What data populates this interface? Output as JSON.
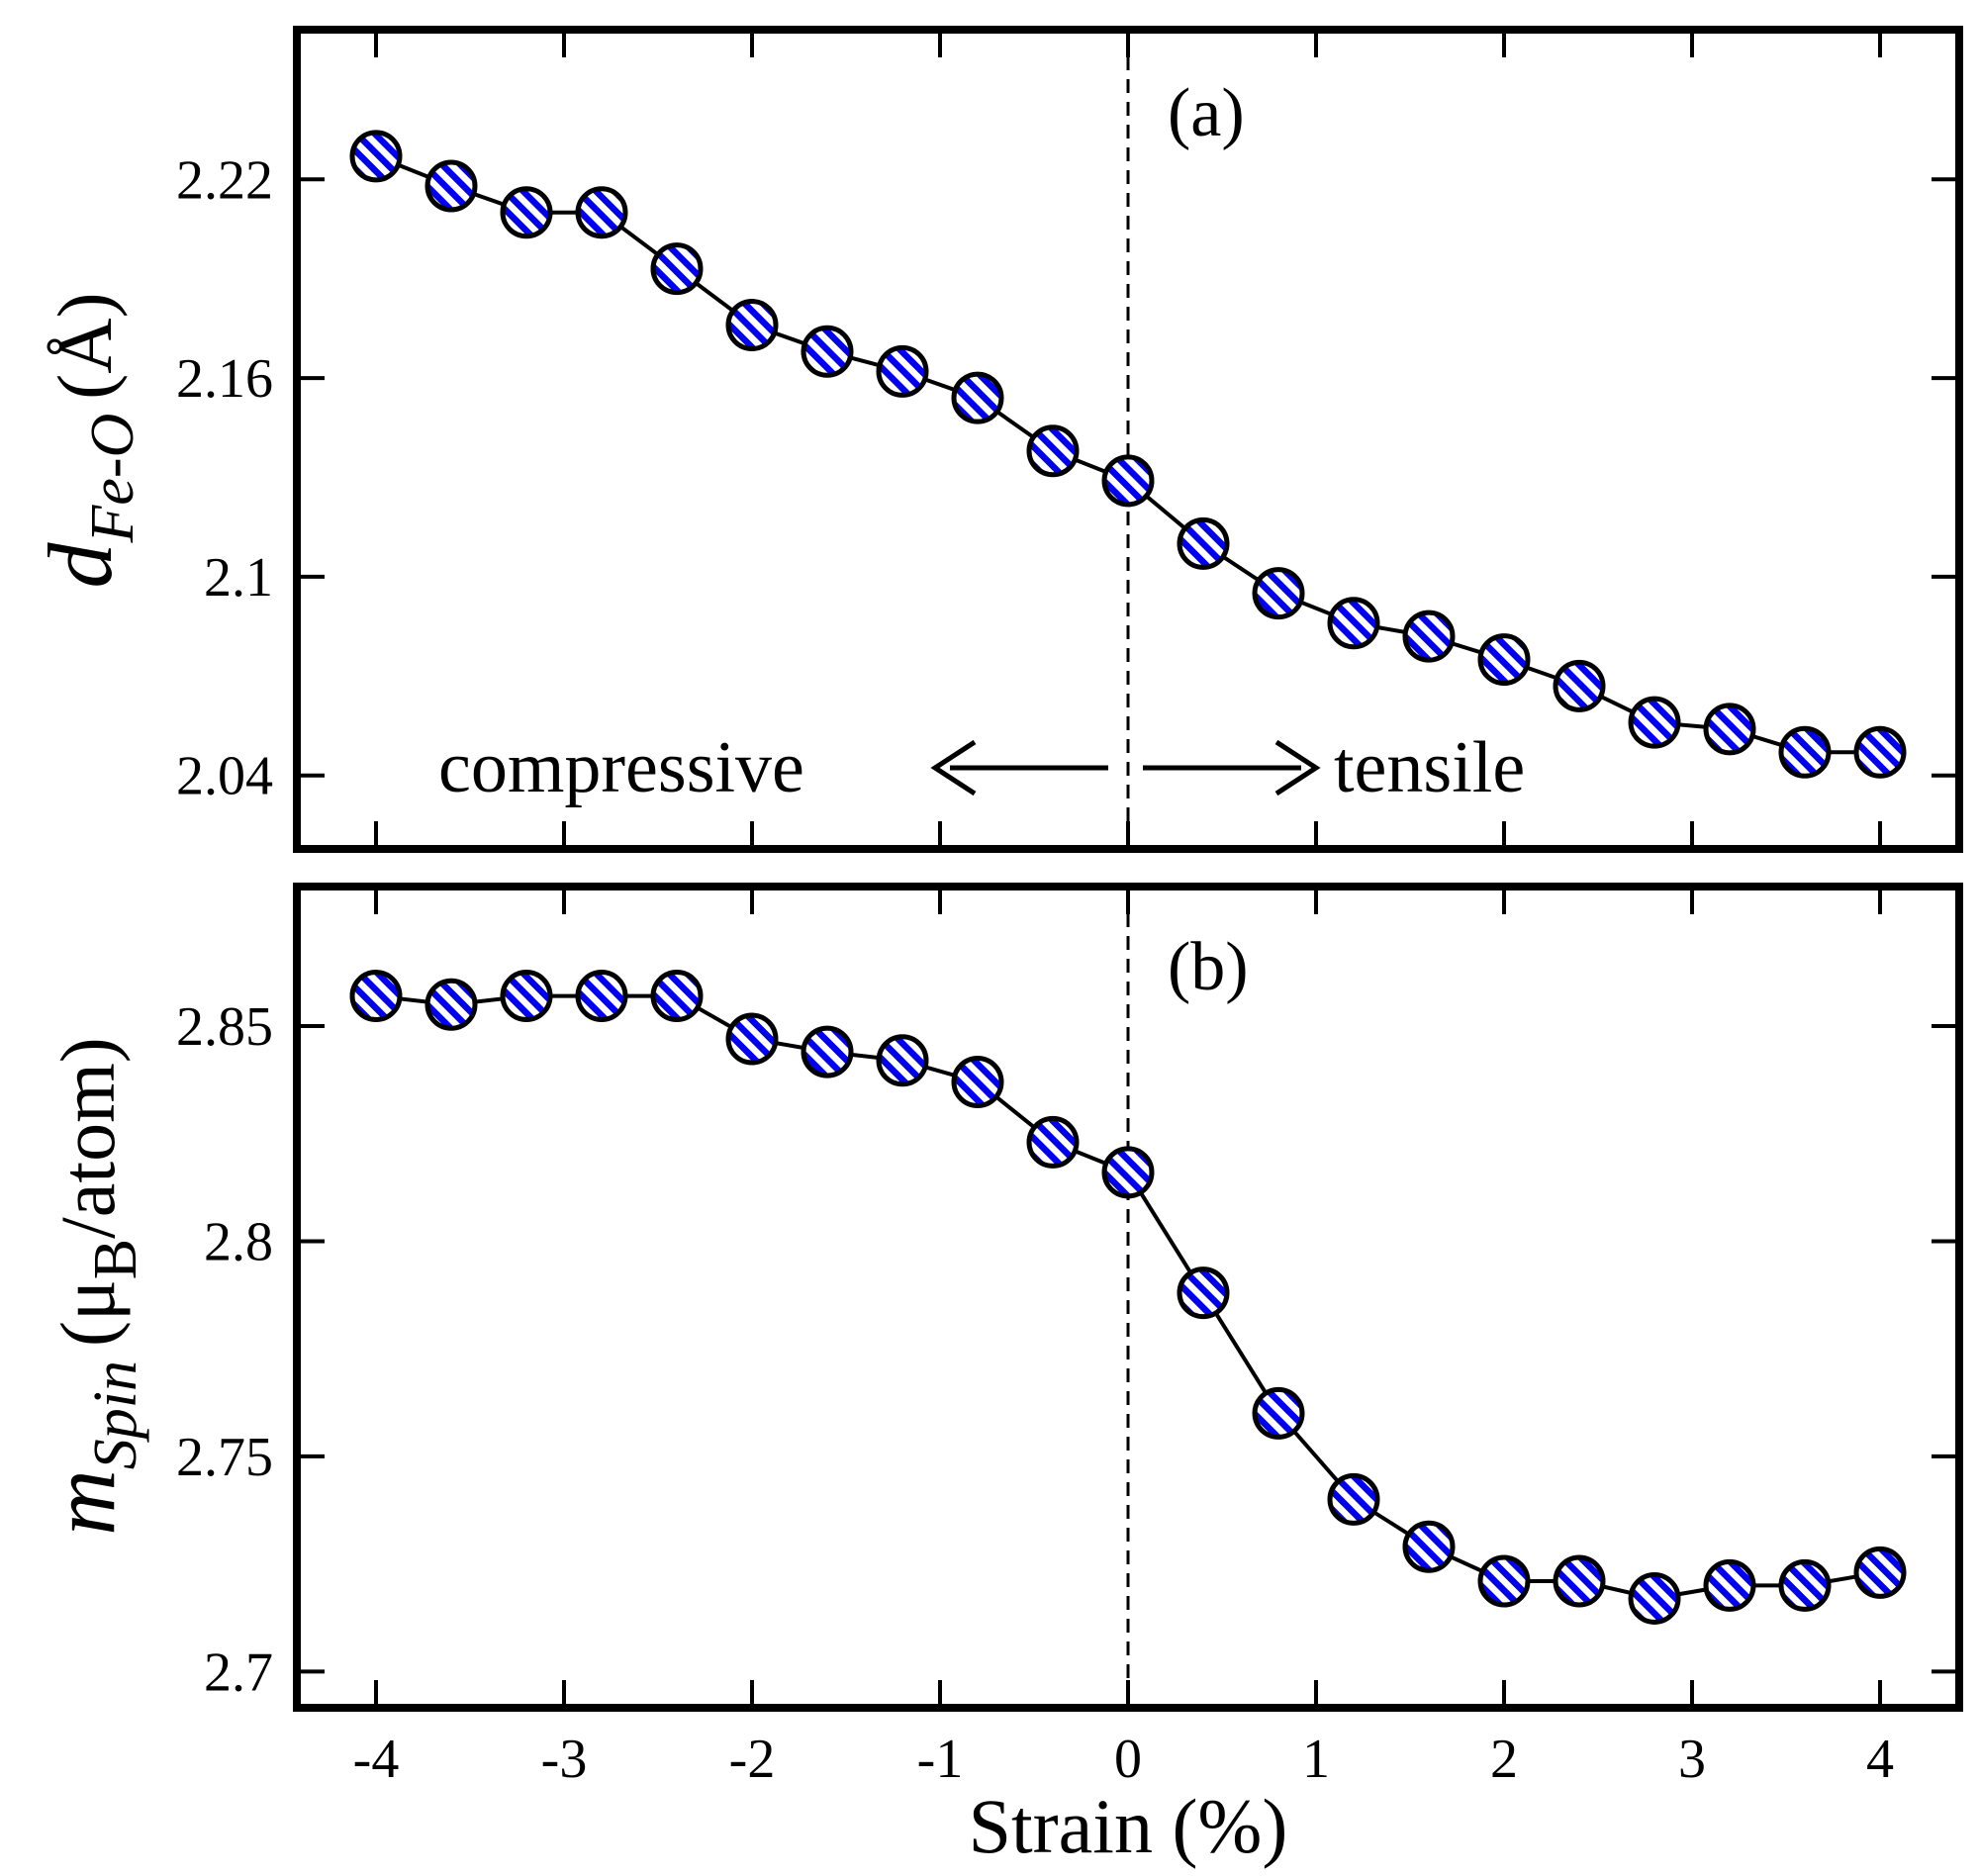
{
  "chart_data": [
    {
      "type": "line",
      "panel_label": "(a)",
      "title": "",
      "xlabel": "Strain (%)",
      "ylabel": {
        "symbol": "d",
        "subscript": "Fe-O",
        "unit": "(Å)"
      },
      "xlim": [
        -4.4,
        4.4
      ],
      "ylim": [
        2.019,
        2.264
      ],
      "xticks": [
        -4,
        -3,
        -2,
        -1,
        0,
        1,
        2,
        3,
        4
      ],
      "yticks": [
        2.04,
        2.1,
        2.16,
        2.22
      ],
      "ytick_labels": [
        "2.04",
        "2.1",
        "2.16",
        "2.22"
      ],
      "grid": false,
      "vline_x": 0,
      "annotations": {
        "left": "compressive",
        "right": "tensile"
      },
      "series": [
        {
          "name": "d Fe-O",
          "color": "#0000ee",
          "marker": "circle-striped",
          "x": [
            -4,
            -3.6,
            -3.2,
            -2.8,
            -2.4,
            -2,
            -1.6,
            -1.2,
            -0.8,
            -0.4,
            0,
            0.4,
            0.8,
            1.2,
            1.6,
            2,
            2.4,
            2.8,
            3.2,
            3.6,
            4
          ],
          "y": [
            2.227,
            2.218,
            2.21,
            2.21,
            2.193,
            2.176,
            2.168,
            2.162,
            2.154,
            2.138,
            2.129,
            2.11,
            2.095,
            2.086,
            2.082,
            2.075,
            2.067,
            2.056,
            2.054,
            2.047,
            2.047
          ]
        }
      ]
    },
    {
      "type": "line",
      "panel_label": "(b)",
      "title": "",
      "xlabel": "Strain (%)",
      "ylabel": {
        "symbol": "m",
        "subscript": "Spin",
        "unit_prefix": "(μ",
        "unit_sub": "B",
        "unit_suffix": "/atom)"
      },
      "xlim": [
        -4.4,
        4.4
      ],
      "ylim": [
        2.6925,
        2.8815
      ],
      "xticks": [
        -4,
        -3,
        -2,
        -1,
        0,
        1,
        2,
        3,
        4
      ],
      "xtick_labels": [
        "-4",
        "-3",
        "-2",
        "-1",
        "0",
        "1",
        "2",
        "3",
        "4"
      ],
      "yticks": [
        2.7,
        2.75,
        2.8,
        2.85
      ],
      "ytick_labels": [
        "2.7",
        "2.75",
        "2.8",
        "2.85"
      ],
      "grid": false,
      "vline_x": 0,
      "series": [
        {
          "name": "m Spin",
          "color": "#0000ee",
          "marker": "circle-striped",
          "x": [
            -4,
            -3.6,
            -3.2,
            -2.8,
            -2.4,
            -2,
            -1.6,
            -1.2,
            -0.8,
            -0.4,
            0,
            0.4,
            0.8,
            1.2,
            1.6,
            2,
            2.4,
            2.8,
            3.2,
            3.6,
            4
          ],
          "y": [
            2.857,
            2.855,
            2.857,
            2.857,
            2.857,
            2.847,
            2.844,
            2.842,
            2.837,
            2.823,
            2.816,
            2.788,
            2.76,
            2.74,
            2.729,
            2.721,
            2.721,
            2.717,
            2.72,
            2.72,
            2.723
          ]
        }
      ]
    }
  ]
}
